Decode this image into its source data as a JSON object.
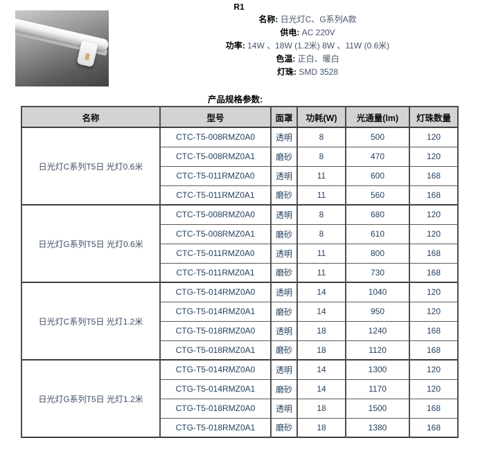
{
  "header": {
    "code": "R1",
    "photo": "t5-led-tube-light-photo"
  },
  "product": {
    "info": [
      {
        "label": "名称:",
        "value": "日光灯C、G系列A款"
      },
      {
        "label": "供电:",
        "value": "AC 220V"
      },
      {
        "label": "功率:",
        "value": "14W 、18W (1.2米) 8W 、11W (0.6米)"
      },
      {
        "label": "色温:",
        "value": "正白、暖白"
      },
      {
        "label": "灯珠:",
        "value": "SMD 3528"
      }
    ]
  },
  "spec": {
    "heading": "产品规格参数:",
    "table": {
      "columns": [
        "名称",
        "型号",
        "面罩",
        "功耗(W)",
        "光通量(lm)",
        "灯珠数量"
      ],
      "groups": [
        {
          "name": "日光灯C系列T5日 光灯0.6米",
          "rows": [
            [
              "CTC-T5-008RMZ0A0",
              "透明",
              "8",
              "500",
              "120"
            ],
            [
              "CTC-T5-008RMZ0A1",
              "磨砂",
              "8",
              "470",
              "120"
            ],
            [
              "CTC-T5-011RMZ0A0",
              "透明",
              "11",
              "600",
              "168"
            ],
            [
              "CTC-T5-011RMZ0A1",
              "磨砂",
              "11",
              "560",
              "168"
            ]
          ]
        },
        {
          "name": "日光灯G系列T5日 光灯0.6米",
          "rows": [
            [
              "CTC-T5-008RMZ0A0",
              "透明",
              "8",
              "680",
              "120"
            ],
            [
              "CTC-T5-008RMZ0A1",
              "磨砂",
              "8",
              "610",
              "120"
            ],
            [
              "CTC-T5-011RMZ0A0",
              "透明",
              "11",
              "800",
              "168"
            ],
            [
              "CTC-T5-011RMZ0A1",
              "磨砂",
              "11",
              "730",
              "168"
            ]
          ]
        },
        {
          "name": "日光灯C系列T5日 光灯1.2米",
          "rows": [
            [
              "CTG-T5-014RMZ0A0",
              "透明",
              "14",
              "1040",
              "120"
            ],
            [
              "CTG-T5-014RMZ0A1",
              "磨砂",
              "14",
              "950",
              "120"
            ],
            [
              "CTG-T5-018RMZ0A0",
              "透明",
              "18",
              "1240",
              "168"
            ],
            [
              "CTG-T5-018RMZ0A1",
              "磨砂",
              "18",
              "1120",
              "168"
            ]
          ]
        },
        {
          "name": "日光灯G系列T5日 光灯1.2米",
          "rows": [
            [
              "CTG-T5-014RMZ0A0",
              "透明",
              "14",
              "1300",
              "120"
            ],
            [
              "CTG-T5-014RMZ0A1",
              "磨砂",
              "14",
              "1170",
              "120"
            ],
            [
              "CTG-T5-018RMZ0A0",
              "透明",
              "18",
              "1500",
              "168"
            ],
            [
              "CTG-T5-018RMZ0A1",
              "磨砂",
              "18",
              "1380",
              "168"
            ]
          ]
        }
      ]
    }
  },
  "colors": {
    "table_header_bg": "#D3D3D3",
    "table_border": "#4F4F4F",
    "table_value_text": "#24405F",
    "info_value_text": "#44546A",
    "label_text": "#000000"
  }
}
